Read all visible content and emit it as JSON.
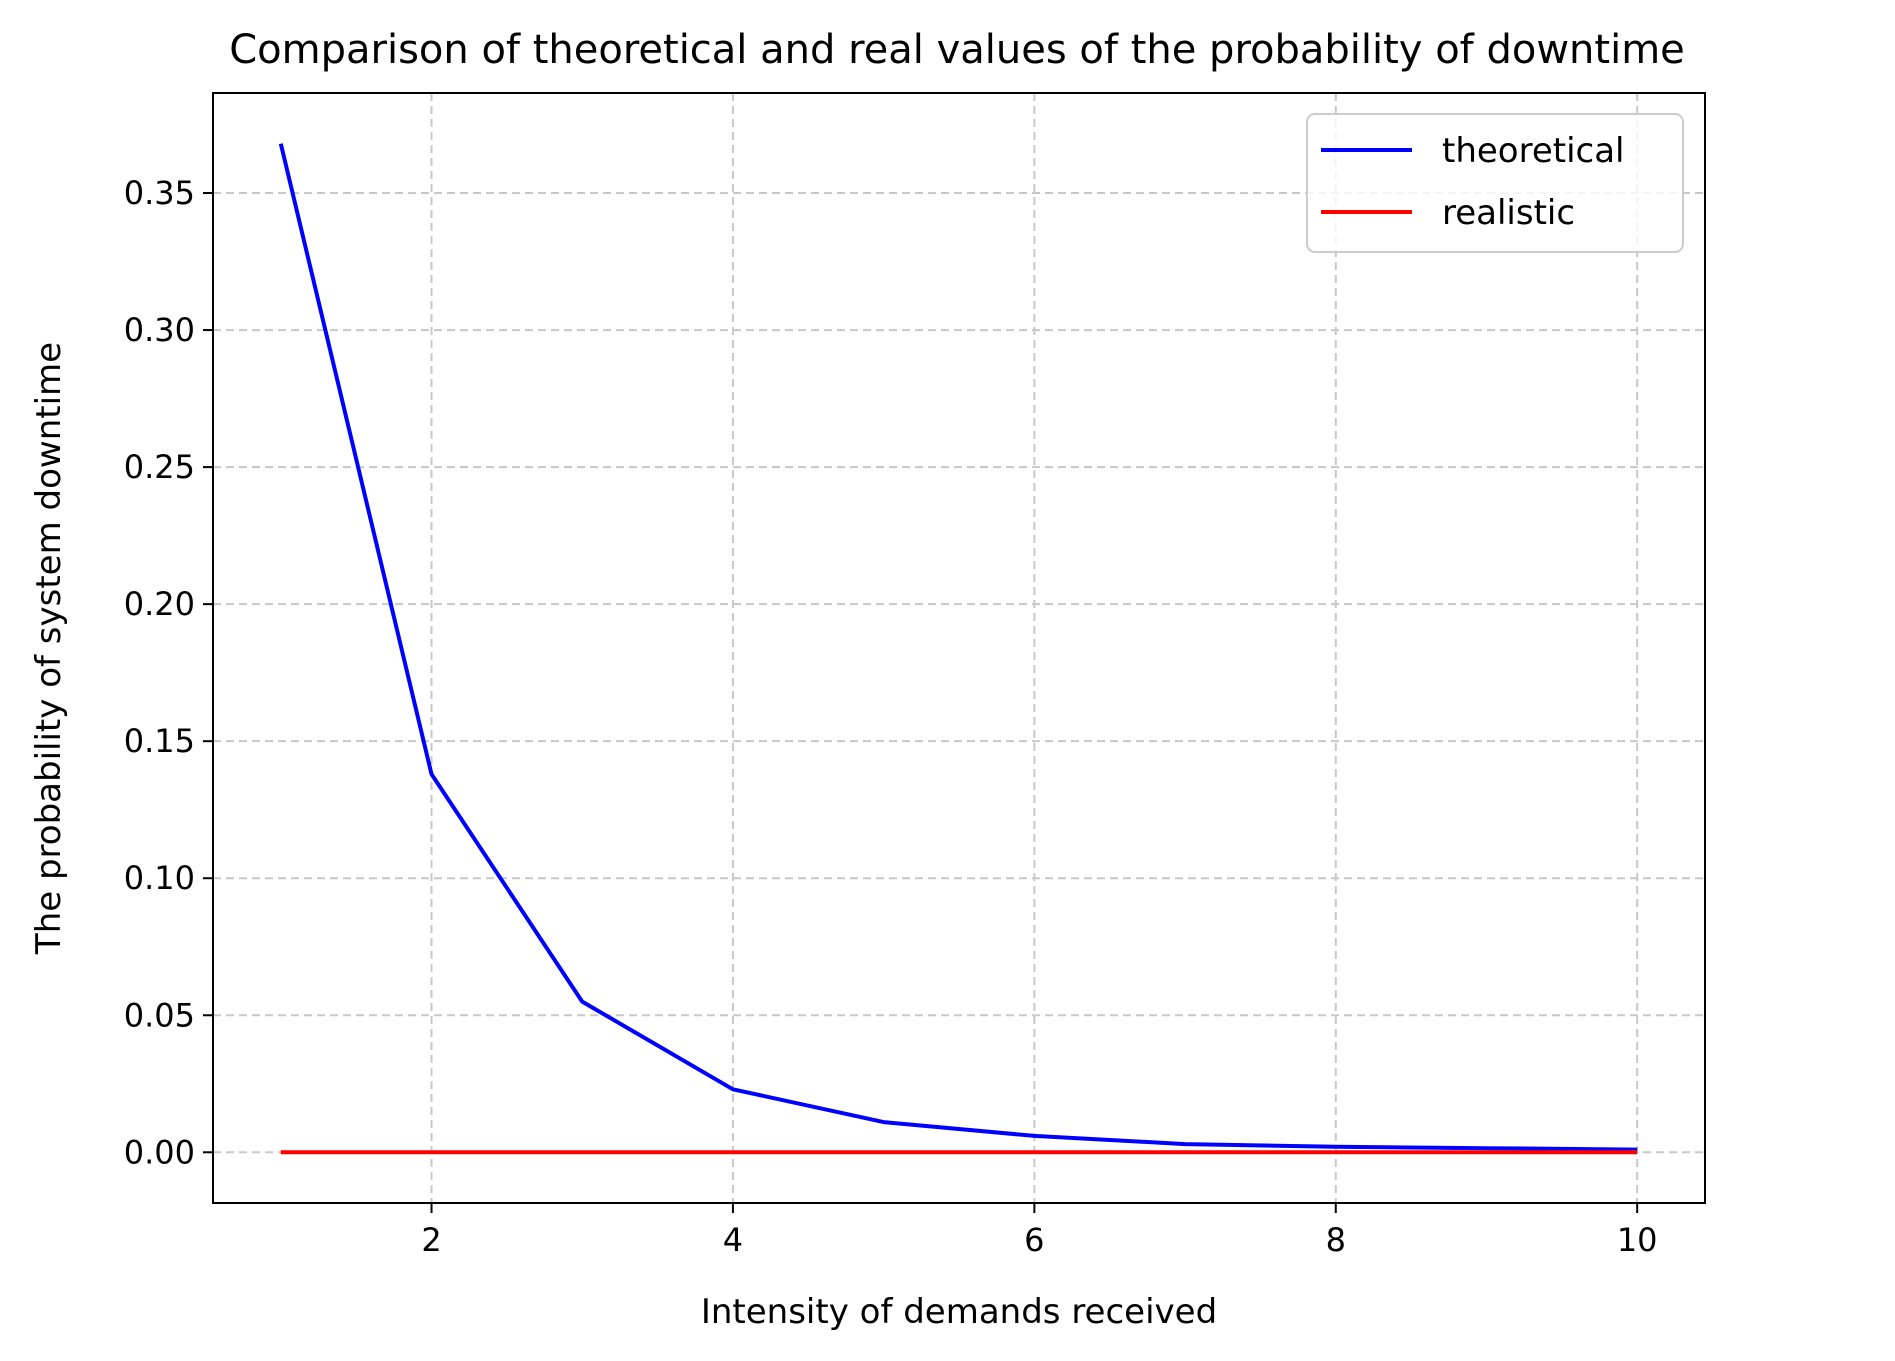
{
  "chart_data": {
    "type": "line",
    "title": "Comparison of theoretical and real values of the probability of downtime",
    "xlabel": "Intensity of demands received",
    "ylabel": "The probability of system downtime",
    "x": [
      1,
      2,
      3,
      4,
      5,
      6,
      7,
      8,
      9,
      10
    ],
    "series": [
      {
        "name": "theoretical",
        "color": "#0000ff",
        "values": [
          0.368,
          0.138,
          0.055,
          0.023,
          0.011,
          0.006,
          0.003,
          0.002,
          0.0015,
          0.001
        ]
      },
      {
        "name": "realistic",
        "color": "#ff0000",
        "values": [
          0,
          0,
          0,
          0,
          0,
          0,
          0,
          0,
          0,
          0
        ]
      }
    ],
    "xlim": [
      0.55,
      10.45
    ],
    "ylim": [
      -0.0185,
      0.3865
    ],
    "xticks": [
      "2",
      "4",
      "6",
      "8",
      "10"
    ],
    "yticks": [
      "0.00",
      "0.05",
      "0.10",
      "0.15",
      "0.20",
      "0.25",
      "0.30",
      "0.35"
    ],
    "grid": true,
    "legend_position": "top-right"
  }
}
